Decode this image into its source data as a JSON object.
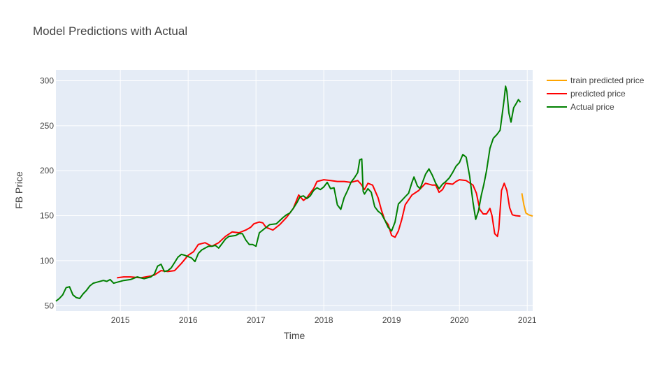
{
  "chart_data": {
    "type": "line",
    "title": "Model Predictions with Actual",
    "xlabel": "Time",
    "ylabel": "FB Price",
    "x_range": [
      2014.05,
      2021.08
    ],
    "ylim": [
      44,
      312
    ],
    "x_ticks": [
      2015,
      2016,
      2017,
      2018,
      2019,
      2020,
      2021
    ],
    "x_tick_labels": [
      "2015",
      "2016",
      "2017",
      "2018",
      "2019",
      "2020",
      "2021"
    ],
    "y_ticks": [
      50,
      100,
      150,
      200,
      250,
      300
    ],
    "y_tick_labels": [
      "50",
      "100",
      "150",
      "200",
      "250",
      "300"
    ],
    "grid": true,
    "legend_position": "right",
    "plot_background": "#E5ECF6",
    "series": [
      {
        "name": "train predicted price",
        "color": "#FFA500",
        "points": [
          [
            2020.92,
            175
          ],
          [
            2020.95,
            162
          ],
          [
            2020.98,
            153
          ],
          [
            2021.02,
            151
          ],
          [
            2021.06,
            150
          ],
          [
            2021.08,
            149.5
          ]
        ]
      },
      {
        "name": "predicted price",
        "color": "#FF0000",
        "points": [
          [
            2014.95,
            81
          ],
          [
            2015.05,
            82
          ],
          [
            2015.15,
            82
          ],
          [
            2015.3,
            81
          ],
          [
            2015.45,
            83
          ],
          [
            2015.5,
            84
          ],
          [
            2015.6,
            89
          ],
          [
            2015.7,
            88
          ],
          [
            2015.8,
            89
          ],
          [
            2015.9,
            97
          ],
          [
            2016.0,
            106
          ],
          [
            2016.08,
            110
          ],
          [
            2016.15,
            118
          ],
          [
            2016.25,
            120
          ],
          [
            2016.35,
            116
          ],
          [
            2016.45,
            120
          ],
          [
            2016.55,
            127
          ],
          [
            2016.65,
            132
          ],
          [
            2016.75,
            131
          ],
          [
            2016.85,
            134
          ],
          [
            2016.92,
            137
          ],
          [
            2016.97,
            141
          ],
          [
            2017.05,
            143
          ],
          [
            2017.1,
            142
          ],
          [
            2017.15,
            137
          ],
          [
            2017.25,
            134
          ],
          [
            2017.35,
            140
          ],
          [
            2017.45,
            148
          ],
          [
            2017.55,
            158
          ],
          [
            2017.63,
            173
          ],
          [
            2017.7,
            167
          ],
          [
            2017.75,
            170
          ],
          [
            2017.85,
            180
          ],
          [
            2017.9,
            188
          ],
          [
            2018.0,
            190
          ],
          [
            2018.1,
            189
          ],
          [
            2018.2,
            188
          ],
          [
            2018.3,
            188
          ],
          [
            2018.4,
            187
          ],
          [
            2018.5,
            189
          ],
          [
            2018.55,
            185
          ],
          [
            2018.6,
            179
          ],
          [
            2018.65,
            186
          ],
          [
            2018.72,
            184
          ],
          [
            2018.8,
            170
          ],
          [
            2018.85,
            156
          ],
          [
            2018.9,
            145
          ],
          [
            2018.95,
            140
          ],
          [
            2019.0,
            128
          ],
          [
            2019.05,
            126
          ],
          [
            2019.1,
            133
          ],
          [
            2019.15,
            146
          ],
          [
            2019.2,
            162
          ],
          [
            2019.3,
            173
          ],
          [
            2019.4,
            178
          ],
          [
            2019.5,
            186
          ],
          [
            2019.6,
            184
          ],
          [
            2019.65,
            184
          ],
          [
            2019.7,
            176
          ],
          [
            2019.75,
            179
          ],
          [
            2019.8,
            186
          ],
          [
            2019.9,
            185
          ],
          [
            2019.95,
            188
          ],
          [
            2020.0,
            190
          ],
          [
            2020.1,
            189
          ],
          [
            2020.2,
            184
          ],
          [
            2020.25,
            175
          ],
          [
            2020.3,
            157
          ],
          [
            2020.35,
            152
          ],
          [
            2020.4,
            152
          ],
          [
            2020.45,
            158
          ],
          [
            2020.48,
            150
          ],
          [
            2020.52,
            130
          ],
          [
            2020.56,
            127
          ],
          [
            2020.58,
            135
          ],
          [
            2020.62,
            178
          ],
          [
            2020.66,
            186
          ],
          [
            2020.7,
            178
          ],
          [
            2020.74,
            159
          ],
          [
            2020.78,
            151
          ],
          [
            2020.83,
            150
          ],
          [
            2020.9,
            149.5
          ]
        ]
      },
      {
        "name": "Actual price",
        "color": "#008000",
        "points": [
          [
            2014.05,
            55
          ],
          [
            2014.1,
            58
          ],
          [
            2014.15,
            62
          ],
          [
            2014.2,
            70
          ],
          [
            2014.25,
            71
          ],
          [
            2014.3,
            62
          ],
          [
            2014.35,
            59
          ],
          [
            2014.4,
            58
          ],
          [
            2014.45,
            63
          ],
          [
            2014.5,
            67
          ],
          [
            2014.55,
            72
          ],
          [
            2014.6,
            75
          ],
          [
            2014.65,
            76
          ],
          [
            2014.75,
            78
          ],
          [
            2014.8,
            77
          ],
          [
            2014.85,
            79
          ],
          [
            2014.9,
            75
          ],
          [
            2014.95,
            76
          ],
          [
            2015.05,
            78
          ],
          [
            2015.15,
            79
          ],
          [
            2015.25,
            82
          ],
          [
            2015.35,
            80
          ],
          [
            2015.45,
            82
          ],
          [
            2015.5,
            85
          ],
          [
            2015.55,
            94
          ],
          [
            2015.6,
            96
          ],
          [
            2015.65,
            88
          ],
          [
            2015.7,
            89
          ],
          [
            2015.75,
            92
          ],
          [
            2015.8,
            98
          ],
          [
            2015.85,
            104
          ],
          [
            2015.9,
            107
          ],
          [
            2015.95,
            106
          ],
          [
            2016.05,
            103
          ],
          [
            2016.1,
            99
          ],
          [
            2016.15,
            108
          ],
          [
            2016.2,
            112
          ],
          [
            2016.3,
            116
          ],
          [
            2016.35,
            116
          ],
          [
            2016.4,
            117
          ],
          [
            2016.45,
            114
          ],
          [
            2016.5,
            119
          ],
          [
            2016.55,
            124
          ],
          [
            2016.6,
            127
          ],
          [
            2016.7,
            128
          ],
          [
            2016.75,
            130
          ],
          [
            2016.8,
            130
          ],
          [
            2016.85,
            123
          ],
          [
            2016.9,
            118
          ],
          [
            2016.95,
            118
          ],
          [
            2017.0,
            116
          ],
          [
            2017.05,
            131
          ],
          [
            2017.1,
            134
          ],
          [
            2017.2,
            140
          ],
          [
            2017.3,
            141
          ],
          [
            2017.4,
            148
          ],
          [
            2017.45,
            151
          ],
          [
            2017.5,
            153
          ],
          [
            2017.55,
            158
          ],
          [
            2017.6,
            164
          ],
          [
            2017.65,
            171
          ],
          [
            2017.7,
            172
          ],
          [
            2017.75,
            169
          ],
          [
            2017.8,
            172
          ],
          [
            2017.85,
            178
          ],
          [
            2017.9,
            181
          ],
          [
            2017.95,
            179
          ],
          [
            2018.0,
            182
          ],
          [
            2018.05,
            187
          ],
          [
            2018.1,
            180
          ],
          [
            2018.15,
            181
          ],
          [
            2018.2,
            162
          ],
          [
            2018.25,
            157
          ],
          [
            2018.3,
            170
          ],
          [
            2018.35,
            178
          ],
          [
            2018.4,
            187
          ],
          [
            2018.45,
            192
          ],
          [
            2018.5,
            198
          ],
          [
            2018.53,
            212
          ],
          [
            2018.56,
            213
          ],
          [
            2018.58,
            177
          ],
          [
            2018.6,
            174
          ],
          [
            2018.65,
            180
          ],
          [
            2018.7,
            176
          ],
          [
            2018.75,
            160
          ],
          [
            2018.8,
            155
          ],
          [
            2018.85,
            152
          ],
          [
            2018.9,
            145
          ],
          [
            2018.95,
            137
          ],
          [
            2019.0,
            133
          ],
          [
            2019.05,
            143
          ],
          [
            2019.1,
            163
          ],
          [
            2019.15,
            167
          ],
          [
            2019.2,
            171
          ],
          [
            2019.25,
            175
          ],
          [
            2019.3,
            187
          ],
          [
            2019.33,
            193
          ],
          [
            2019.38,
            183
          ],
          [
            2019.42,
            180
          ],
          [
            2019.45,
            186
          ],
          [
            2019.5,
            196
          ],
          [
            2019.55,
            202
          ],
          [
            2019.6,
            195
          ],
          [
            2019.65,
            186
          ],
          [
            2019.7,
            180
          ],
          [
            2019.75,
            185
          ],
          [
            2019.8,
            188
          ],
          [
            2019.85,
            192
          ],
          [
            2019.9,
            198
          ],
          [
            2019.95,
            205
          ],
          [
            2020.0,
            209
          ],
          [
            2020.05,
            218
          ],
          [
            2020.1,
            215
          ],
          [
            2020.15,
            194
          ],
          [
            2020.2,
            165
          ],
          [
            2020.24,
            146
          ],
          [
            2020.28,
            155
          ],
          [
            2020.32,
            172
          ],
          [
            2020.36,
            185
          ],
          [
            2020.4,
            200
          ],
          [
            2020.45,
            225
          ],
          [
            2020.5,
            236
          ],
          [
            2020.55,
            240
          ],
          [
            2020.6,
            245
          ],
          [
            2020.63,
            262
          ],
          [
            2020.66,
            280
          ],
          [
            2020.68,
            294
          ],
          [
            2020.7,
            288
          ],
          [
            2020.73,
            264
          ],
          [
            2020.76,
            254
          ],
          [
            2020.8,
            270
          ],
          [
            2020.84,
            275
          ],
          [
            2020.87,
            279
          ],
          [
            2020.9,
            276
          ]
        ]
      }
    ]
  }
}
